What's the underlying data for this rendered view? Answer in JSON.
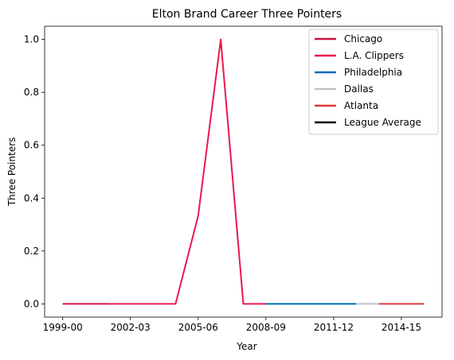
{
  "chart_data": {
    "type": "line",
    "title": "Elton Brand Career Three Pointers",
    "xlabel": "Year",
    "ylabel": "Three Pointers",
    "x_ticks": [
      "1999-00",
      "2002-03",
      "2005-06",
      "2008-09",
      "2011-12",
      "2014-15"
    ],
    "x_tick_index": [
      0,
      3,
      6,
      9,
      12,
      15
    ],
    "xlim": [
      -0.8,
      16.8
    ],
    "ylim": [
      -0.05,
      1.05
    ],
    "y_ticks": [
      0.0,
      0.2,
      0.4,
      0.6,
      0.8,
      1.0
    ],
    "y_tick_labels": [
      "0.0",
      "0.2",
      "0.4",
      "0.6",
      "0.8",
      "1.0"
    ],
    "x_seasons": [
      "1999-00",
      "2000-01",
      "2001-02",
      "2002-03",
      "2003-04",
      "2004-05",
      "2005-06",
      "2006-07",
      "2007-08",
      "2008-09",
      "2009-10",
      "2010-11",
      "2011-12",
      "2012-13",
      "2013-14",
      "2014-15",
      "2015-16"
    ],
    "grid": false,
    "legend_position": "top-right",
    "series": [
      {
        "name": "Chicago",
        "color": "#ce1141",
        "x": [
          0,
          1,
          2
        ],
        "y": [
          0.0,
          0.0,
          0.0
        ]
      },
      {
        "name": "L.A. Clippers",
        "color": "#ed174c",
        "x": [
          2,
          3,
          4,
          5,
          6,
          7,
          8,
          9
        ],
        "y": [
          0.0,
          0.0,
          0.0,
          0.0,
          0.333,
          1.0,
          0.0,
          0.0
        ]
      },
      {
        "name": "Philadelphia",
        "color": "#006bb6",
        "x": [
          9,
          10,
          11,
          12,
          13
        ],
        "y": [
          0.0,
          0.0,
          0.0,
          0.0,
          0.0
        ]
      },
      {
        "name": "Dallas",
        "color": "#bbc4ca",
        "x": [
          13,
          14
        ],
        "y": [
          0.0,
          0.0
        ]
      },
      {
        "name": "Atlanta",
        "color": "#e03a3e",
        "x": [
          14,
          15,
          16
        ],
        "y": [
          0.0,
          0.0,
          0.0
        ]
      },
      {
        "name": "League Average",
        "color": "#000000",
        "x": [],
        "y": []
      }
    ]
  }
}
